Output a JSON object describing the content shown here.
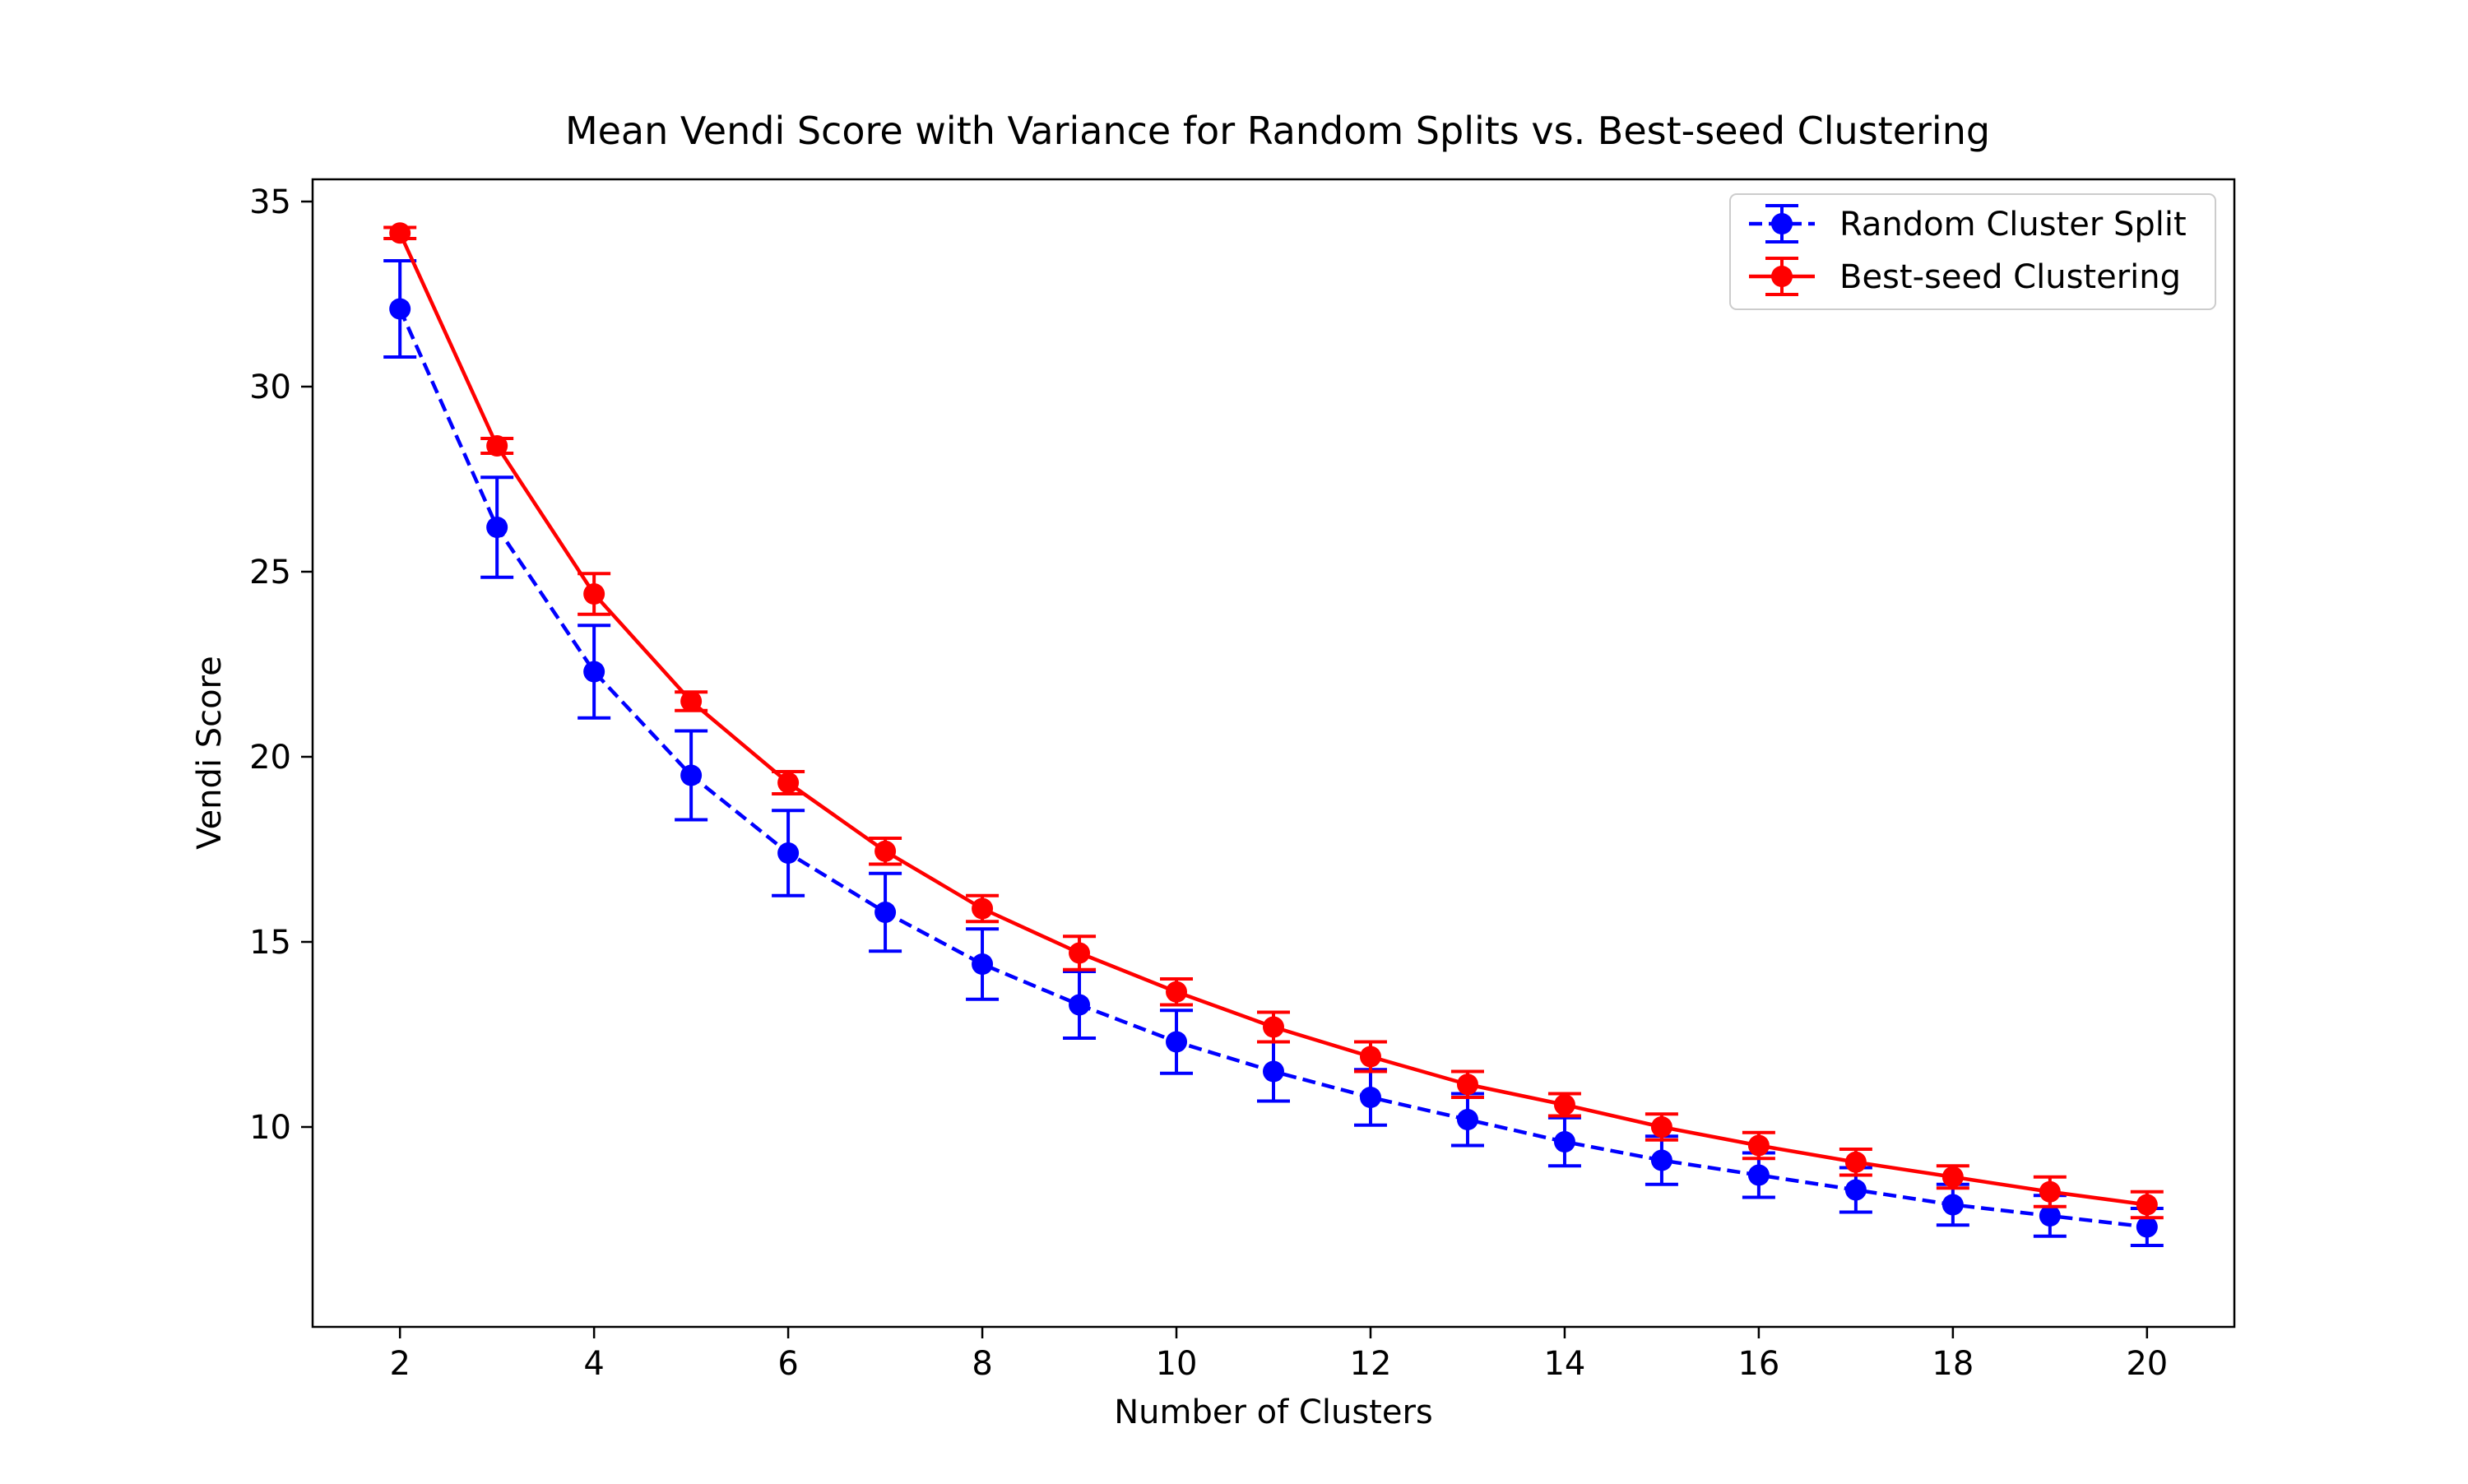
{
  "chart_data": {
    "type": "line",
    "title": "Mean Vendi Score with Variance for Random Splits vs. Best-seed Clustering",
    "xlabel": "Number of Clusters",
    "ylabel": "Vendi Score",
    "xlim": [
      1.1,
      20.9
    ],
    "ylim": [
      4.6,
      35.6
    ],
    "xticks": [
      2,
      4,
      6,
      8,
      10,
      12,
      14,
      16,
      18,
      20
    ],
    "yticks": [
      10,
      15,
      20,
      25,
      30,
      35
    ],
    "grid": false,
    "legend_position": "top-right",
    "x": [
      2,
      3,
      4,
      5,
      6,
      7,
      8,
      9,
      10,
      11,
      12,
      13,
      14,
      15,
      16,
      17,
      18,
      19,
      20
    ],
    "series": [
      {
        "name": "Random Cluster Split",
        "color": "#0000ff",
        "line_style": "dashed",
        "marker": "circle",
        "values": [
          32.1,
          26.2,
          22.3,
          19.5,
          17.4,
          15.8,
          14.4,
          13.3,
          12.3,
          11.5,
          10.8,
          10.2,
          9.6,
          9.1,
          8.7,
          8.3,
          7.9,
          7.6,
          7.3
        ],
        "errors": [
          1.3,
          1.35,
          1.25,
          1.2,
          1.15,
          1.05,
          0.95,
          0.9,
          0.85,
          0.8,
          0.75,
          0.7,
          0.65,
          0.65,
          0.6,
          0.6,
          0.55,
          0.55,
          0.5
        ]
      },
      {
        "name": "Best-seed Clustering",
        "color": "#ff0000",
        "line_style": "solid",
        "marker": "circle",
        "values": [
          34.15,
          28.4,
          24.4,
          21.5,
          19.3,
          17.45,
          15.9,
          14.7,
          13.65,
          12.7,
          11.9,
          11.15,
          10.6,
          10.0,
          9.5,
          9.05,
          8.65,
          8.25,
          7.9
        ],
        "errors": [
          0.15,
          0.2,
          0.55,
          0.25,
          0.3,
          0.35,
          0.35,
          0.45,
          0.35,
          0.4,
          0.4,
          0.35,
          0.3,
          0.35,
          0.35,
          0.35,
          0.3,
          0.4,
          0.35
        ]
      }
    ]
  }
}
